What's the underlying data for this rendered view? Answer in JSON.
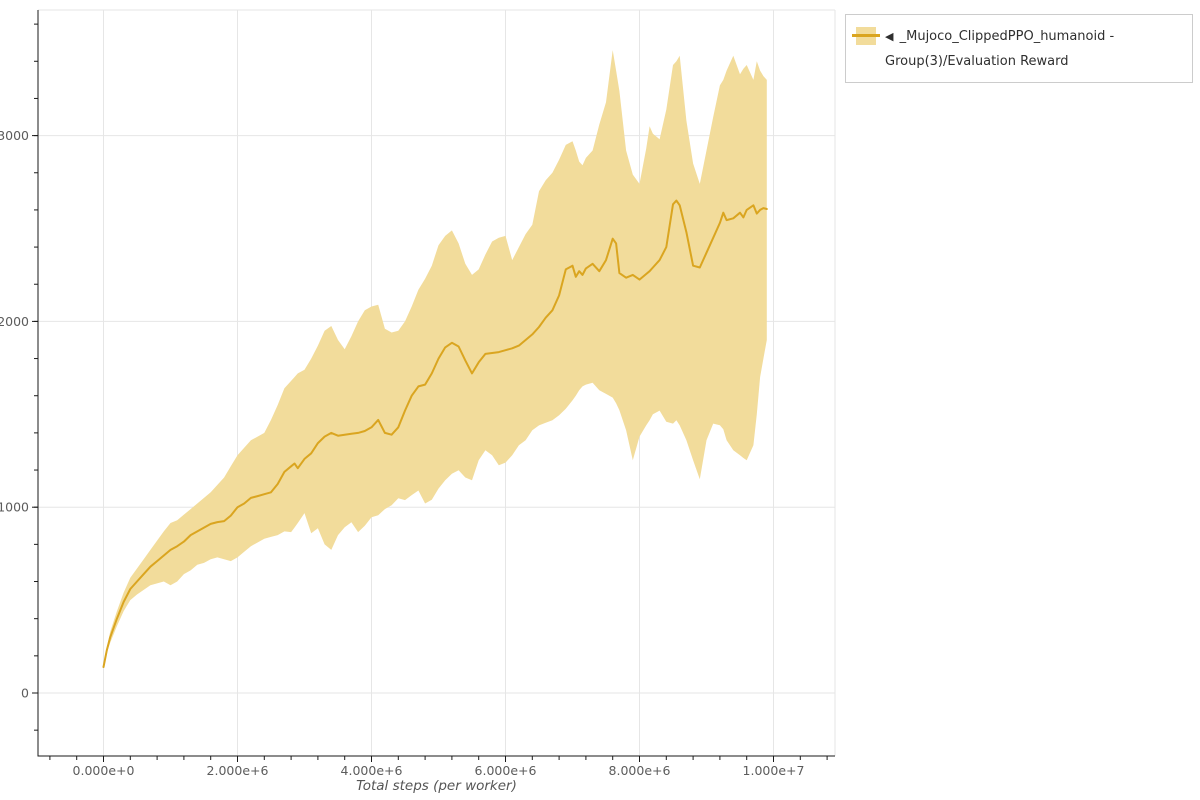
{
  "figure": {
    "background_color": "#ffffff",
    "plot_fill_color": "#ffffff",
    "outline_color": "#e5e5e5",
    "grid_color": "#e6e6e6",
    "axis_line_color": "#1a1a1a",
    "tick_label_color": "#5c5c5c",
    "axis_title_color": "#555555"
  },
  "legend": {
    "marker": "◀",
    "label": "_Mujoco_ClippedPPO_humanoid - Group(3)/Evaluation Reward",
    "swatch_band_color": "#f2dc9b",
    "swatch_line_color": "#daa520",
    "border_color": "#cccccc"
  },
  "chart_data": {
    "type": "line",
    "title": "",
    "xlabel": "Total steps (per worker)",
    "ylabel": "",
    "x_units": "millions of steps",
    "series_name": "_Mujoco_ClippedPPO_humanoid - Group(3)/Evaluation Reward",
    "band_color": "#f2dc9b",
    "line_color": "#daa520",
    "xlim_e6": [
      -0.98,
      10.92
    ],
    "ylim": [
      -340,
      3676
    ],
    "grid": "on",
    "legend_position": "top-right-outside",
    "x_axis": {
      "title": "Total steps (per worker)",
      "major": [
        {
          "v": 0,
          "label": "0.000e+0"
        },
        {
          "v": 2,
          "label": "2.000e+6"
        },
        {
          "v": 4,
          "label": "4.000e+6"
        },
        {
          "v": 6,
          "label": "6.000e+6"
        },
        {
          "v": 8,
          "label": "8.000e+6"
        },
        {
          "v": 10,
          "label": "1.000e+7"
        }
      ],
      "minor_step": 0.4,
      "minor_range": [
        -0.8,
        10.8
      ]
    },
    "y_axis": {
      "major": [
        {
          "v": 0,
          "label": "0"
        },
        {
          "v": 1000,
          "label": "1000"
        },
        {
          "v": 2000,
          "label": "2000"
        },
        {
          "v": 3000,
          "label": "3000"
        }
      ],
      "minor_step": 200,
      "minor_range": [
        -200,
        3600
      ]
    },
    "points_format": [
      "x_e6",
      "mean",
      "lower",
      "upper"
    ],
    "points": [
      [
        0,
        140,
        130,
        150
      ],
      [
        0.05,
        230,
        215,
        245
      ],
      [
        0.1,
        300,
        270,
        330
      ],
      [
        0.2,
        400,
        360,
        440
      ],
      [
        0.3,
        490,
        440,
        540
      ],
      [
        0.4,
        560,
        500,
        620
      ],
      [
        0.5,
        600,
        530,
        670
      ],
      [
        0.6,
        640,
        555,
        720
      ],
      [
        0.7,
        680,
        580,
        770
      ],
      [
        0.8,
        710,
        590,
        820
      ],
      [
        0.9,
        740,
        600,
        870
      ],
      [
        1.0,
        770,
        580,
        915
      ],
      [
        1.1,
        790,
        600,
        930
      ],
      [
        1.2,
        815,
        640,
        960
      ],
      [
        1.3,
        850,
        660,
        990
      ],
      [
        1.4,
        870,
        690,
        1020
      ],
      [
        1.5,
        890,
        700,
        1050
      ],
      [
        1.6,
        910,
        720,
        1080
      ],
      [
        1.7,
        920,
        730,
        1120
      ],
      [
        1.8,
        925,
        720,
        1160
      ],
      [
        1.9,
        955,
        710,
        1220
      ],
      [
        2.0,
        1000,
        730,
        1280
      ],
      [
        2.1,
        1020,
        760,
        1320
      ],
      [
        2.2,
        1050,
        790,
        1360
      ],
      [
        2.3,
        1060,
        810,
        1380
      ],
      [
        2.4,
        1070,
        830,
        1400
      ],
      [
        2.5,
        1080,
        840,
        1470
      ],
      [
        2.6,
        1125,
        850,
        1550
      ],
      [
        2.7,
        1190,
        870,
        1640
      ],
      [
        2.8,
        1220,
        866,
        1680
      ],
      [
        2.85,
        1235,
        890,
        1700
      ],
      [
        2.9,
        1210,
        915,
        1720
      ],
      [
        3.0,
        1260,
        968,
        1740
      ],
      [
        3.1,
        1290,
        860,
        1800
      ],
      [
        3.2,
        1345,
        887,
        1870
      ],
      [
        3.3,
        1380,
        800,
        1950
      ],
      [
        3.4,
        1400,
        770,
        1975
      ],
      [
        3.5,
        1385,
        850,
        1900
      ],
      [
        3.6,
        1390,
        892,
        1850
      ],
      [
        3.7,
        1395,
        919,
        1920
      ],
      [
        3.8,
        1400,
        866,
        2000
      ],
      [
        3.9,
        1410,
        900,
        2060
      ],
      [
        4.0,
        1430,
        946,
        2080
      ],
      [
        4.1,
        1470,
        957,
        2090
      ],
      [
        4.2,
        1400,
        990,
        1960
      ],
      [
        4.3,
        1390,
        1010,
        1940
      ],
      [
        4.4,
        1430,
        1048,
        1950
      ],
      [
        4.5,
        1520,
        1038,
        2000
      ],
      [
        4.6,
        1600,
        1065,
        2080
      ],
      [
        4.7,
        1650,
        1090,
        2170
      ],
      [
        4.8,
        1660,
        1020,
        2230
      ],
      [
        4.9,
        1720,
        1040,
        2300
      ],
      [
        5.0,
        1800,
        1100,
        2410
      ],
      [
        5.1,
        1860,
        1145,
        2460
      ],
      [
        5.2,
        1885,
        1180,
        2490
      ],
      [
        5.3,
        1865,
        1199,
        2420
      ],
      [
        5.4,
        1790,
        1160,
        2310
      ],
      [
        5.5,
        1720,
        1145,
        2250
      ],
      [
        5.6,
        1780,
        1253,
        2280
      ],
      [
        5.7,
        1825,
        1306,
        2360
      ],
      [
        5.8,
        1830,
        1280,
        2430
      ],
      [
        5.9,
        1835,
        1226,
        2450
      ],
      [
        6.0,
        1845,
        1240,
        2460
      ],
      [
        6.1,
        1855,
        1280,
        2330
      ],
      [
        6.2,
        1870,
        1333,
        2400
      ],
      [
        6.3,
        1900,
        1360,
        2470
      ],
      [
        6.4,
        1930,
        1414,
        2520
      ],
      [
        6.5,
        1970,
        1440,
        2700
      ],
      [
        6.6,
        2020,
        1455,
        2760
      ],
      [
        6.7,
        2060,
        1468,
        2800
      ],
      [
        6.8,
        2140,
        1495,
        2870
      ],
      [
        6.9,
        2280,
        1530,
        2950
      ],
      [
        7.0,
        2300,
        1575,
        2970
      ],
      [
        7.05,
        2240,
        1600,
        2920
      ],
      [
        7.1,
        2270,
        1629,
        2860
      ],
      [
        7.15,
        2250,
        1650,
        2840
      ],
      [
        7.2,
        2285,
        1660,
        2880
      ],
      [
        7.3,
        2310,
        1670,
        2920
      ],
      [
        7.4,
        2270,
        1629,
        3060
      ],
      [
        7.5,
        2330,
        1610,
        3180
      ],
      [
        7.6,
        2445,
        1590,
        3460
      ],
      [
        7.65,
        2420,
        1560,
        3350
      ],
      [
        7.7,
        2260,
        1522,
        3240
      ],
      [
        7.8,
        2235,
        1414,
        2920
      ],
      [
        7.9,
        2250,
        1253,
        2790
      ],
      [
        8.0,
        2225,
        1380,
        2740
      ],
      [
        8.1,
        2255,
        1440,
        2930
      ],
      [
        8.15,
        2270,
        1468,
        3050
      ],
      [
        8.2,
        2290,
        1500,
        3010
      ],
      [
        8.3,
        2330,
        1520,
        2980
      ],
      [
        8.4,
        2400,
        1460,
        3140
      ],
      [
        8.5,
        2630,
        1450,
        3380
      ],
      [
        8.55,
        2650,
        1468,
        3400
      ],
      [
        8.6,
        2625,
        1440,
        3430
      ],
      [
        8.7,
        2480,
        1360,
        3080
      ],
      [
        8.8,
        2300,
        1253,
        2850
      ],
      [
        8.9,
        2290,
        1150,
        2740
      ],
      [
        9.0,
        2370,
        1360,
        2920
      ],
      [
        9.1,
        2450,
        1450,
        3100
      ],
      [
        9.2,
        2530,
        1441,
        3270
      ],
      [
        9.25,
        2585,
        1420,
        3300
      ],
      [
        9.3,
        2545,
        1360,
        3350
      ],
      [
        9.4,
        2555,
        1306,
        3430
      ],
      [
        9.5,
        2585,
        1280,
        3330
      ],
      [
        9.55,
        2560,
        1265,
        3360
      ],
      [
        9.6,
        2600,
        1253,
        3380
      ],
      [
        9.7,
        2625,
        1333,
        3300
      ],
      [
        9.75,
        2580,
        1500,
        3400
      ],
      [
        9.8,
        2600,
        1700,
        3350
      ],
      [
        9.85,
        2610,
        1800,
        3320
      ],
      [
        9.9,
        2605,
        1900,
        3300
      ]
    ]
  }
}
